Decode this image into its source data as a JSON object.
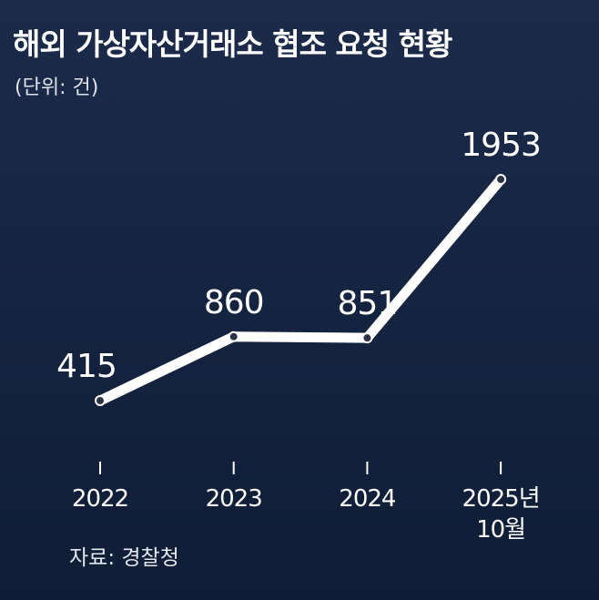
{
  "chart_data": {
    "type": "line",
    "title": "해외 가상자산거래소 협조 요청 현황",
    "subtitle": "(단위: 건)",
    "source": "자료: 경찰청",
    "categories": [
      "2022",
      "2023",
      "2024",
      "2025년 10월"
    ],
    "values": [
      415,
      860,
      851,
      1953
    ],
    "color": "#ffffff"
  }
}
